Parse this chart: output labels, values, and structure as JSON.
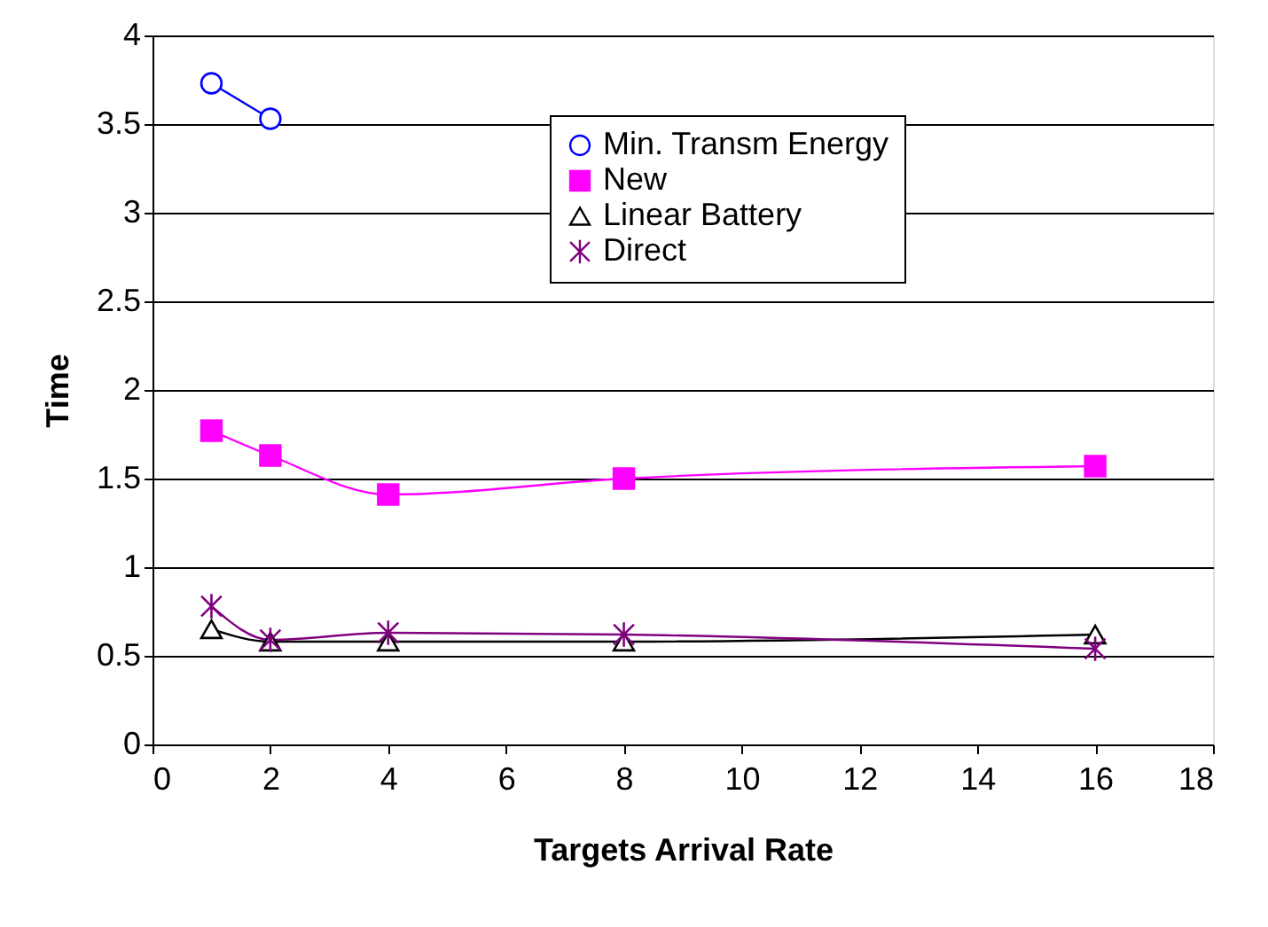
{
  "chart_data": {
    "type": "line",
    "xlabel": "Targets Arrival Rate",
    "ylabel": "Time",
    "xlim": [
      0,
      18
    ],
    "xticks": [
      0,
      2,
      4,
      6,
      8,
      10,
      12,
      14,
      16,
      18
    ],
    "ylim": [
      0,
      4
    ],
    "yticks": [
      {
        "value": 0,
        "label": "0"
      },
      0.5,
      {
        "value": 1,
        "label": "1"
      },
      1.5,
      {
        "value": 2,
        "label": "2"
      },
      2.5,
      {
        "value": 3,
        "label": "3"
      },
      3.5,
      {
        "value": 4,
        "label": "4"
      }
    ],
    "grid": "y",
    "legend": "top right",
    "line_style": "solid",
    "series": [
      {
        "name": "Min. Transm Energy",
        "color": "#0000ff",
        "marker": "circle",
        "x": [
          1,
          2
        ],
        "values": [
          3.73,
          3.53
        ]
      },
      {
        "name": "New",
        "color": "#ff00ff",
        "marker": "square",
        "x": [
          1,
          2,
          4,
          8,
          16
        ],
        "values": [
          1.77,
          1.63,
          1.41,
          1.5,
          1.57
        ]
      },
      {
        "name": "Linear Battery",
        "color": "#000000",
        "marker": "triangle",
        "x": [
          1,
          2,
          4,
          8,
          16
        ],
        "values": [
          0.65,
          0.58,
          0.58,
          0.58,
          0.62
        ]
      },
      {
        "name": "Direct",
        "color": "#800080",
        "marker": "cross",
        "x": [
          1,
          2,
          4,
          8,
          16
        ],
        "values": [
          0.78,
          0.59,
          0.63,
          0.62,
          0.54
        ]
      }
    ]
  }
}
